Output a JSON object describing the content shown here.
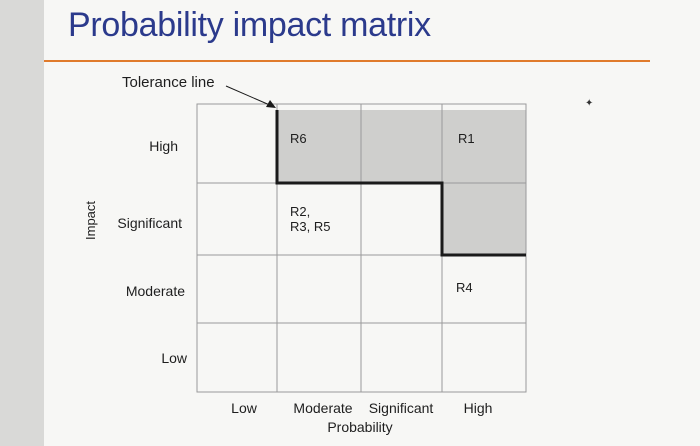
{
  "title": "Probability impact matrix",
  "tolerance_label": "Tolerance line",
  "axes": {
    "y_title": "Impact",
    "x_title": "Probability",
    "impact_levels": [
      "High",
      "Significant",
      "Moderate",
      "Low"
    ],
    "probability_levels": [
      "Low",
      "Moderate",
      "Significant",
      "High"
    ]
  },
  "cells": {
    "high_moderate": "R6",
    "high_high": "R1",
    "significant_moderate_line1": "R2,",
    "significant_moderate_line2": "R3, R5",
    "moderate_high": "R4"
  },
  "shaded_cells": [
    {
      "impact": "High",
      "probability": "Moderate"
    },
    {
      "impact": "High",
      "probability": "Significant"
    },
    {
      "impact": "High",
      "probability": "High"
    },
    {
      "impact": "Significant",
      "probability": "High"
    }
  ],
  "colors": {
    "title": "#2b3a8c",
    "rule": "#e07b2c",
    "shade": "#cfcfcd",
    "grid": "#9a9a9a",
    "tolerance_line": "#1a1a1a"
  }
}
